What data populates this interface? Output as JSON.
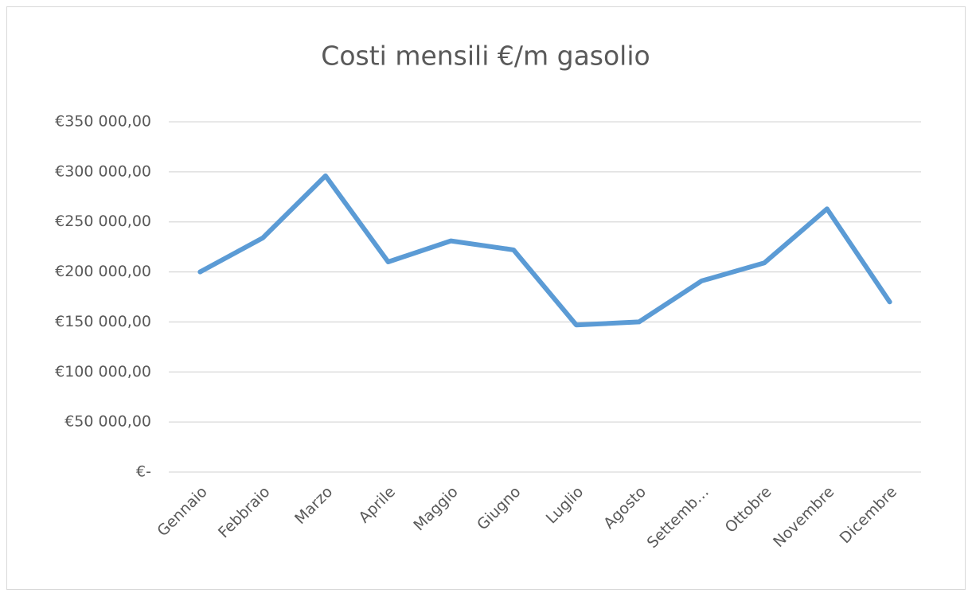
{
  "chart_data": {
    "type": "line",
    "title": "Costi mensili €/m gasolio",
    "categories": [
      "Gennaio",
      "Febbraio",
      "Marzo",
      "Aprile",
      "Maggio",
      "Giugno",
      "Luglio",
      "Agosto",
      "Settemb…",
      "Ottobre",
      "Novembre",
      "Dicembre"
    ],
    "series": [
      {
        "color": "#5b9bd5",
        "values": [
          200000,
          234000,
          296000,
          210000,
          231000,
          222000,
          147000,
          150000,
          191000,
          209000,
          263000,
          170000
        ]
      }
    ],
    "ylim": [
      0,
      350000
    ],
    "yticks": [
      {
        "value": 0,
        "label": "€-"
      },
      {
        "value": 50000,
        "label": "€50 000,00"
      },
      {
        "value": 100000,
        "label": "€100 000,00"
      },
      {
        "value": 150000,
        "label": "€150 000,00"
      },
      {
        "value": 200000,
        "label": "€200 000,00"
      },
      {
        "value": 250000,
        "label": "€250 000,00"
      },
      {
        "value": 300000,
        "label": "€300 000,00"
      },
      {
        "value": 350000,
        "label": "€350 000,00"
      }
    ],
    "grid": true
  }
}
